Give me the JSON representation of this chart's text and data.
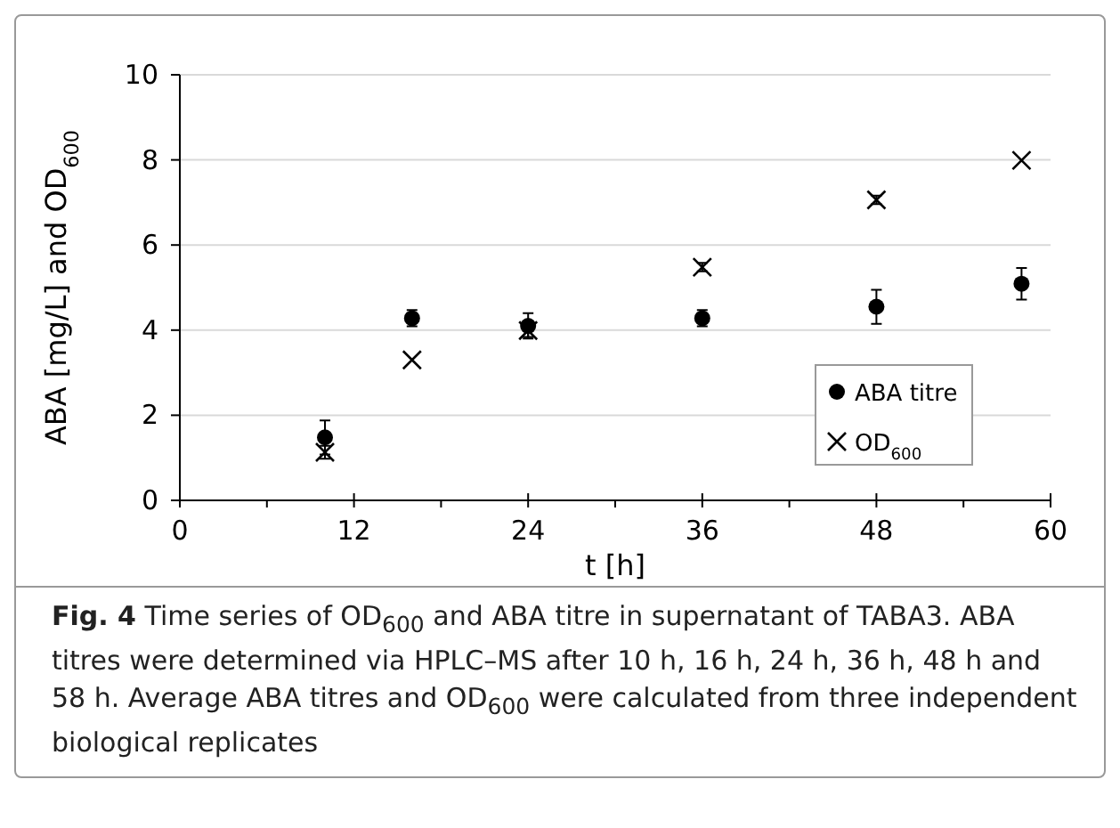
{
  "chart_data": {
    "type": "scatter",
    "xlabel": "t [h]",
    "ylabel": "ABA [mg/L] and OD$_{600}$",
    "x": [
      10,
      16,
      24,
      36,
      48,
      58
    ],
    "xlim": [
      0,
      60
    ],
    "xticks": [
      0,
      12,
      24,
      36,
      48,
      60
    ],
    "ylim": [
      0,
      10
    ],
    "yticks": [
      0,
      2,
      4,
      6,
      8,
      10
    ],
    "grid": "y",
    "legend": "bottom right",
    "series": [
      {
        "name": "ABA titre",
        "color": "#000000",
        "marker": "circle",
        "values": [
          1.48,
          4.28,
          4.1,
          4.28,
          4.55,
          5.09
        ],
        "errors": [
          0.4,
          0.19,
          0.3,
          0.19,
          0.4,
          0.37
        ]
      },
      {
        "name": "OD$_{600}$",
        "color": "#000000",
        "marker": "cross",
        "values": [
          1.13,
          3.3,
          3.99,
          5.48,
          7.06,
          7.99
        ],
        "errors": [
          0.15,
          null,
          0.15,
          0.1,
          0.1,
          null
        ]
      }
    ],
    "annotations": [
      "Fig. 4  Time series of OD$_{600}$ and ABA titre in supernatant of TABA3. ABA titres were determined via HPLC–MS after 10 h, 16 h, 24 h, 36 h, 48 h and 58 h. Average ABA titres and OD$_{600}$ were calculated from three independent biological replicates"
    ]
  }
}
